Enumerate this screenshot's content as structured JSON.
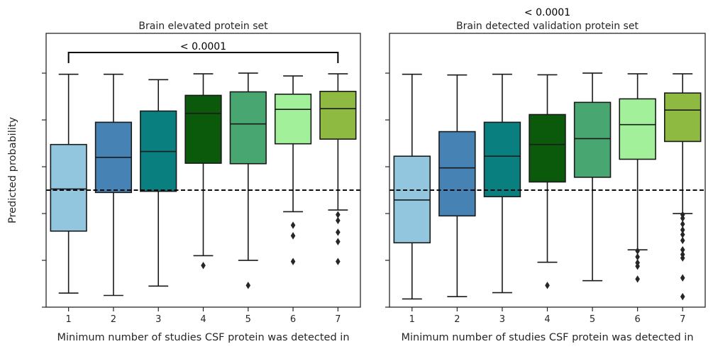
{
  "chart_data": [
    {
      "type": "box",
      "title": "Brain elevated protein set",
      "xlabel": "Minimum number of studies CSF protein was detected in",
      "ylabel": "Predicted probability",
      "categories": [
        "1",
        "2",
        "3",
        "4",
        "5",
        "6",
        "7"
      ],
      "ylim": [
        0,
        1.17
      ],
      "yticks": [
        "0.0",
        "0.2",
        "0.4",
        "0.6",
        "0.8",
        "1.0"
      ],
      "reference_line": 0.5,
      "bracket": {
        "from": "1",
        "to": "7",
        "label": "< 0.0001"
      },
      "colors": [
        "#92c5de",
        "#4682b4",
        "#0a7f7f",
        "#0b5a0b",
        "#48a770",
        "#a2f09a",
        "#8fba42"
      ],
      "boxes": [
        {
          "whislo": 0.06,
          "q1": 0.325,
          "med": 0.505,
          "q3": 0.695,
          "whishi": 0.995,
          "fliers": []
        },
        {
          "whislo": 0.05,
          "q1": 0.49,
          "med": 0.64,
          "q3": 0.79,
          "whishi": 0.995,
          "fliers": []
        },
        {
          "whislo": 0.09,
          "q1": 0.495,
          "med": 0.665,
          "q3": 0.838,
          "whishi": 0.972,
          "fliers": []
        },
        {
          "whislo": 0.22,
          "q1": 0.615,
          "med": 0.828,
          "q3": 0.905,
          "whishi": 0.997,
          "fliers": [
            0.178
          ]
        },
        {
          "whislo": 0.2,
          "q1": 0.613,
          "med": 0.783,
          "q3": 0.92,
          "whishi": 1.0,
          "fliers": [
            0.093
          ]
        },
        {
          "whislo": 0.408,
          "q1": 0.698,
          "med": 0.845,
          "q3": 0.91,
          "whishi": 0.988,
          "fliers": [
            0.35,
            0.305,
            0.195
          ]
        },
        {
          "whislo": 0.415,
          "q1": 0.718,
          "med": 0.848,
          "q3": 0.922,
          "whishi": 0.997,
          "fliers": [
            0.395,
            0.37,
            0.32,
            0.28,
            0.195
          ]
        }
      ]
    },
    {
      "type": "box",
      "title_annotation": "< 0.0001",
      "title": "Brain detected validation protein set",
      "xlabel": "Minimum number of studies CSF protein was detected in",
      "categories": [
        "1",
        "2",
        "3",
        "4",
        "5",
        "6",
        "7"
      ],
      "ylim": [
        0,
        1.17
      ],
      "reference_line": 0.5,
      "colors": [
        "#92c5de",
        "#4682b4",
        "#0a7f7f",
        "#0b5a0b",
        "#48a770",
        "#a2f09a",
        "#8fba42"
      ],
      "boxes": [
        {
          "whislo": 0.035,
          "q1": 0.275,
          "med": 0.458,
          "q3": 0.645,
          "whishi": 0.995,
          "fliers": []
        },
        {
          "whislo": 0.045,
          "q1": 0.39,
          "med": 0.595,
          "q3": 0.75,
          "whishi": 0.992,
          "fliers": []
        },
        {
          "whislo": 0.062,
          "q1": 0.472,
          "med": 0.645,
          "q3": 0.79,
          "whishi": 0.995,
          "fliers": []
        },
        {
          "whislo": 0.192,
          "q1": 0.535,
          "med": 0.695,
          "q3": 0.823,
          "whishi": 0.993,
          "fliers": [
            0.093
          ]
        },
        {
          "whislo": 0.113,
          "q1": 0.555,
          "med": 0.72,
          "q3": 0.875,
          "whishi": 1.0,
          "fliers": []
        },
        {
          "whislo": 0.245,
          "q1": 0.632,
          "med": 0.78,
          "q3": 0.89,
          "whishi": 0.997,
          "fliers": [
            0.24,
            0.215,
            0.19,
            0.175,
            0.12
          ]
        },
        {
          "whislo": 0.4,
          "q1": 0.708,
          "med": 0.842,
          "q3": 0.915,
          "whishi": 0.997,
          "fliers": [
            0.395,
            0.38,
            0.355,
            0.33,
            0.31,
            0.285,
            0.245,
            0.225,
            0.21,
            0.125,
            0.045
          ]
        }
      ]
    }
  ]
}
